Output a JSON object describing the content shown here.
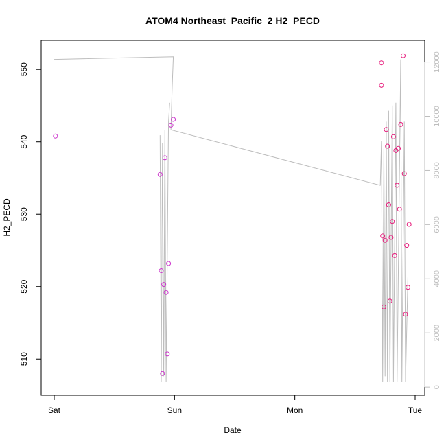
{
  "chart_data": {
    "type": "scatter",
    "title": "ATOM4 Northeast_Pacific_2 H2_PECD",
    "xlabel": "Date",
    "ylabel": "H2_PECD",
    "x_ticks": [
      "Sat",
      "Sun",
      "Mon",
      "Tue"
    ],
    "x_range_days": [
      0,
      3
    ],
    "ylim": [
      505,
      554
    ],
    "y_ticks": [
      510,
      520,
      530,
      540,
      550
    ],
    "y2lim": [
      -300,
      12800
    ],
    "y2_ticks": [
      0,
      2000,
      4000,
      6000,
      8000,
      10000,
      12000
    ],
    "grid": false,
    "points_color_early": "#cc33cc",
    "points_color_late": "#e6197a",
    "line_color": "#bdbdbd",
    "points": [
      {
        "x": 0.01,
        "y": 540.8
      },
      {
        "x": 0.88,
        "y": 535.5
      },
      {
        "x": 0.89,
        "y": 522.2
      },
      {
        "x": 0.9,
        "y": 508.0
      },
      {
        "x": 0.91,
        "y": 520.3
      },
      {
        "x": 0.92,
        "y": 537.8
      },
      {
        "x": 0.93,
        "y": 519.2
      },
      {
        "x": 0.94,
        "y": 510.7
      },
      {
        "x": 0.95,
        "y": 523.2
      },
      {
        "x": 0.97,
        "y": 542.3
      },
      {
        "x": 0.99,
        "y": 543.1
      },
      {
        "x": 2.72,
        "y": 550.9
      },
      {
        "x": 2.72,
        "y": 547.8
      },
      {
        "x": 2.73,
        "y": 527.0
      },
      {
        "x": 2.74,
        "y": 517.2
      },
      {
        "x": 2.75,
        "y": 526.4
      },
      {
        "x": 2.76,
        "y": 541.7
      },
      {
        "x": 2.77,
        "y": 539.4
      },
      {
        "x": 2.78,
        "y": 531.3
      },
      {
        "x": 2.79,
        "y": 518.0
      },
      {
        "x": 2.8,
        "y": 526.8
      },
      {
        "x": 2.81,
        "y": 529.0
      },
      {
        "x": 2.82,
        "y": 540.7
      },
      {
        "x": 2.83,
        "y": 524.3
      },
      {
        "x": 2.84,
        "y": 538.8
      },
      {
        "x": 2.85,
        "y": 534.0
      },
      {
        "x": 2.86,
        "y": 539.1
      },
      {
        "x": 2.87,
        "y": 530.7
      },
      {
        "x": 2.88,
        "y": 542.4
      },
      {
        "x": 2.9,
        "y": 551.9
      },
      {
        "x": 2.91,
        "y": 535.6
      },
      {
        "x": 2.92,
        "y": 516.2
      },
      {
        "x": 2.93,
        "y": 525.7
      },
      {
        "x": 2.94,
        "y": 519.9
      },
      {
        "x": 2.95,
        "y": 528.6
      }
    ],
    "line_series_y2": [
      {
        "x": 0.0,
        "y": 12100
      },
      {
        "x": 0.99,
        "y": 12200
      },
      {
        "x": 0.98,
        "y": 11000
      },
      {
        "x": 0.97,
        "y": 9500
      },
      {
        "x": 2.71,
        "y": 7450
      },
      {
        "x": 2.72,
        "y": 9100
      },
      {
        "x": 2.73,
        "y": 200
      },
      {
        "x": 2.74,
        "y": 8800
      },
      {
        "x": 2.75,
        "y": 400
      },
      {
        "x": 2.76,
        "y": 9800
      },
      {
        "x": 2.77,
        "y": 200
      },
      {
        "x": 2.78,
        "y": 10200
      },
      {
        "x": 2.79,
        "y": 200
      },
      {
        "x": 2.81,
        "y": 10400
      },
      {
        "x": 2.82,
        "y": 200
      },
      {
        "x": 2.84,
        "y": 10500
      },
      {
        "x": 2.85,
        "y": 200
      },
      {
        "x": 2.88,
        "y": 12100
      },
      {
        "x": 2.89,
        "y": 200
      },
      {
        "x": 2.91,
        "y": 9800
      },
      {
        "x": 2.92,
        "y": 200
      },
      {
        "x": 2.94,
        "y": 4100
      }
    ],
    "line_series_y2_sun": [
      {
        "x": 0.88,
        "y": 9300
      },
      {
        "x": 0.89,
        "y": 200
      },
      {
        "x": 0.9,
        "y": 9000
      },
      {
        "x": 0.91,
        "y": 400
      },
      {
        "x": 0.92,
        "y": 9500
      },
      {
        "x": 0.93,
        "y": 200
      },
      {
        "x": 0.95,
        "y": 9800
      },
      {
        "x": 0.96,
        "y": 10500
      }
    ]
  }
}
